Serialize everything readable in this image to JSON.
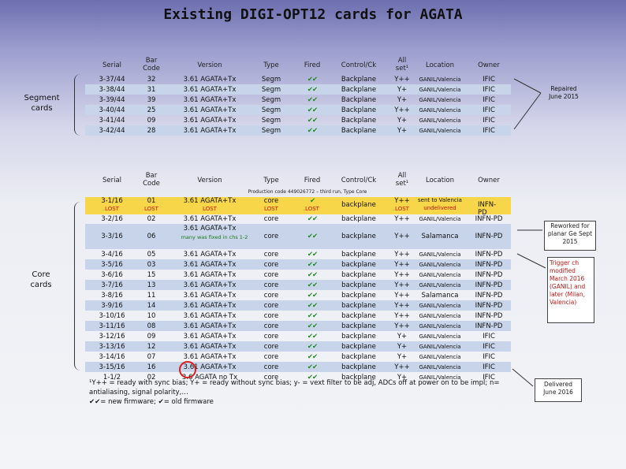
{
  "title": "Existing DIGI-OPT12 cards for AGATA",
  "headers": {
    "serial": "Serial",
    "barcode": "Bar Code",
    "version": "Version",
    "type": "Type",
    "fired": "Fired",
    "control": "Control/Ck",
    "allset": "All set¹",
    "location": "Location",
    "owner": "Owner"
  },
  "segment_label": "Segment cards",
  "core_label": "Core cards",
  "segment_rows": [
    {
      "serial": "3-37/44",
      "bar": "32",
      "version": "3.61 AGATA+Tx",
      "type": "Segm",
      "fired": "✔✔",
      "control": "Backplane",
      "allset": "Y++",
      "location": "GANIL/Valencia",
      "owner": "IFIC"
    },
    {
      "serial": "3-38/44",
      "bar": "31",
      "version": "3.61 AGATA+Tx",
      "type": "Segm",
      "fired": "✔✔",
      "control": "Backplane",
      "allset": "Y+",
      "location": "GANIL/Valencia",
      "owner": "IFIC"
    },
    {
      "serial": "3-39/44",
      "bar": "39",
      "version": "3.61 AGATA+Tx",
      "type": "Segm",
      "fired": "✔✔",
      "control": "Backplane",
      "allset": "Y+",
      "location": "GANIL/Valencia",
      "owner": "IFIC"
    },
    {
      "serial": "3-40/44",
      "bar": "25",
      "version": "3.61 AGATA+Tx",
      "type": "Segm",
      "fired": "✔✔",
      "control": "Backplane",
      "allset": "Y++",
      "location": "GANIL/Valencia",
      "owner": "IFIC"
    },
    {
      "serial": "3-41/44",
      "bar": "09",
      "version": "3.61 AGATA+Tx",
      "type": "Segm",
      "fired": "✔✔",
      "control": "Backplane",
      "allset": "Y+",
      "location": "GANIL/Valencia",
      "owner": "IFIC"
    },
    {
      "serial": "3-42/44",
      "bar": "28",
      "version": "3.61 AGATA+Tx",
      "type": "Segm",
      "fired": "✔✔",
      "control": "Backplane",
      "allset": "Y+",
      "location": "GANIL/Valencia",
      "owner": "IFIC"
    }
  ],
  "production_code": "Production code 449026772 – third run, Type Core",
  "core_lost": {
    "serial": "3-1/16",
    "serial_lost": "LOST",
    "bar": "01",
    "bar_lost": "LOST",
    "version": "3.61 AGATA+Tx",
    "version_lost": "LOST",
    "type": "core",
    "type_lost": "LOST",
    "fired": "✔",
    "fired_lost": "LOST",
    "control": "backplane",
    "allset": "Y++",
    "allset_lost": "LOST",
    "location": "sent to Valencia",
    "location2": "undelivered",
    "owner": "INFN-PD"
  },
  "core_rows": [
    {
      "serial": "3-2/16",
      "bar": "02",
      "version": "3.61 AGATA+Tx",
      "type": "core",
      "fired": "✔✔",
      "control": "backplane",
      "allset": "Y++",
      "location": "GANIL/Valencia",
      "owner": "INFN-PD"
    },
    {
      "serial": "3-3/16",
      "bar": "06",
      "version": "3.61 AGATA+Tx",
      "version_note": "many was fixed in chs 1-2",
      "type": "core",
      "fired": "✔✔",
      "control": "backplane",
      "allset": "Y++",
      "location": "Salamanca",
      "owner": "INFN-PD"
    },
    {
      "serial": "3-4/16",
      "bar": "05",
      "version": "3.61 AGATA+Tx",
      "type": "core",
      "fired": "✔✔",
      "control": "backplane",
      "allset": "Y++",
      "location": "GANIL/Valencia",
      "owner": "INFN-PD"
    },
    {
      "serial": "3-5/16",
      "bar": "03",
      "version": "3.61 AGATA+Tx",
      "type": "core",
      "fired": "✔✔",
      "control": "backplane",
      "allset": "Y++",
      "location": "GANIL/Valencia",
      "owner": "INFN-PD"
    },
    {
      "serial": "3-6/16",
      "bar": "15",
      "version": "3.61 AGATA+Tx",
      "type": "core",
      "fired": "✔✔",
      "control": "backplane",
      "allset": "Y++",
      "location": "GANIL/Valencia",
      "owner": "INFN-PD"
    },
    {
      "serial": "3-7/16",
      "bar": "13",
      "version": "3.61 AGATA+Tx",
      "type": "core",
      "fired": "✔✔",
      "control": "backplane",
      "allset": "Y++",
      "location": "GANIL/Valencia",
      "owner": "INFN-PD"
    },
    {
      "serial": "3-8/16",
      "bar": "11",
      "version": "3.61 AGATA+Tx",
      "type": "core",
      "fired": "✔✔",
      "control": "backplane",
      "allset": "Y++",
      "location": "Salamanca",
      "owner": "INFN-PD"
    },
    {
      "serial": "3-9/16",
      "bar": "14",
      "version": "3.61 AGATA+Tx",
      "type": "core",
      "fired": "✔✔",
      "control": "backplane",
      "allset": "Y++",
      "location": "GANIL/Valencia",
      "owner": "INFN-PD"
    },
    {
      "serial": "3-10/16",
      "bar": "10",
      "version": "3.61 AGATA+Tx",
      "type": "core",
      "fired": "✔✔",
      "control": "backplane",
      "allset": "Y++",
      "location": "GANIL/Valencia",
      "owner": "INFN-PD"
    },
    {
      "serial": "3-11/16",
      "bar": "08",
      "version": "3.61 AGATA+Tx",
      "type": "core",
      "fired": "✔✔",
      "control": "backplane",
      "allset": "Y++",
      "location": "GANIL/Valencia",
      "owner": "INFN-PD"
    },
    {
      "serial": "3-12/16",
      "bar": "09",
      "version": "3.61 AGATA+Tx",
      "type": "core",
      "fired": "✔✔",
      "control": "backplane",
      "allset": "Y+",
      "location": "GANIL/Valencia",
      "owner": "IFIC"
    },
    {
      "serial": "3-13/16",
      "bar": "12",
      "version": "3.61 AGATA+Tx",
      "type": "core",
      "fired": "✔✔",
      "control": "backplane",
      "allset": "Y+",
      "location": "GANIL/Valencia",
      "owner": "IFIC"
    },
    {
      "serial": "3-14/16",
      "bar": "07",
      "version": "3.61 AGATA+Tx",
      "type": "core",
      "fired": "✔✔",
      "control": "backplane",
      "allset": "Y+",
      "location": "GANIL/Valencia",
      "owner": "IFIC"
    },
    {
      "serial": "3-15/16",
      "bar": "16",
      "version": "3.61 AGATA+Tx",
      "type": "core",
      "fired": "✔✔",
      "control": "backplane",
      "allset": "Y++",
      "location": "GANIL/Valencia",
      "owner": "IFIC"
    },
    {
      "serial": "1-1/2",
      "bar": "02",
      "version": "3.6 AGATA no Tx",
      "type": "core",
      "fired": "✔✔",
      "control": "backplane",
      "allset": "Y+",
      "location": "GANIL/Valencia",
      "owner": "IFIC"
    }
  ],
  "notes": {
    "repaired": "Repaired June 2015",
    "reworked": "Reworked for planar Ge Sept 2015",
    "trigger": "Trigger ch modified March 2016 (GANIL) and later (Milan, Valencia)",
    "delivered": "Delivered June 2016"
  },
  "footnote_line1": "¹Y++ = ready with sync bias; Y+ = ready without sync bias; y- = vext filter to be adj, ADCs off at power on to be impl; n= antialiasing, signal polarity,…",
  "footnote_line2": "✔✔= new firmware; ✔= old firmware",
  "colors": {
    "alt_row": "#c8d4ea",
    "highlight": "#f7d64a",
    "check": "#1a8a1a",
    "lost": "#cc1111",
    "circle": "#d42020"
  }
}
